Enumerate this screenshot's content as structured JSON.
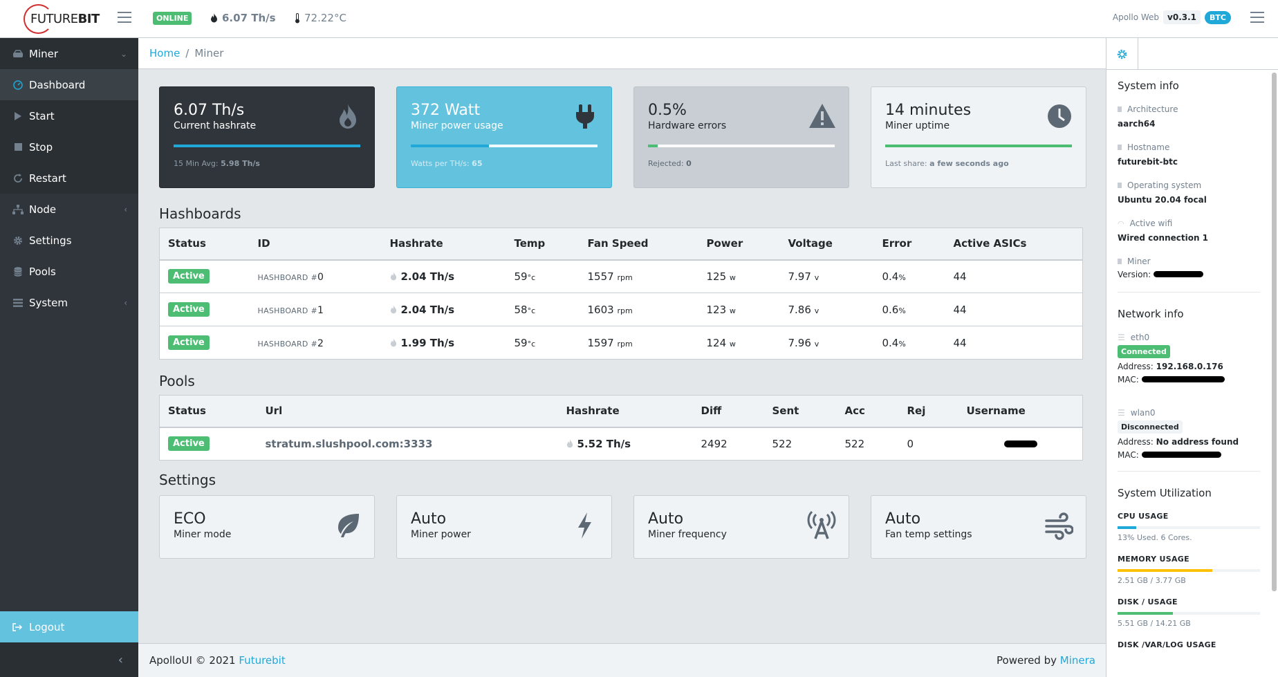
{
  "header": {
    "logo_light": "FUTURE",
    "logo_bold": "BIT",
    "status": "ONLINE",
    "hashrate": "6.07 Th/s",
    "temperature": "72.22°C",
    "app_name": "Apollo Web",
    "version": "v0.3.1",
    "coin": "BTC"
  },
  "sidebar": {
    "items": [
      {
        "label": "Miner",
        "icon": "hdd-icon"
      },
      {
        "label": "Dashboard",
        "icon": "speedometer-icon"
      },
      {
        "label": "Start",
        "icon": "play-icon"
      },
      {
        "label": "Stop",
        "icon": "stop-icon"
      },
      {
        "label": "Restart",
        "icon": "refresh-icon"
      },
      {
        "label": "Node",
        "icon": "network-icon"
      },
      {
        "label": "Settings",
        "icon": "gear-icon"
      },
      {
        "label": "Pools",
        "icon": "database-icon"
      },
      {
        "label": "System",
        "icon": "list-icon"
      }
    ],
    "logout": "Logout"
  },
  "breadcrumb": {
    "home": "Home",
    "sep": "/",
    "current": "Miner"
  },
  "cards": [
    {
      "value": "6.07 Th/s",
      "label": "Current hashrate",
      "foot_label": "15 Min Avg:",
      "foot_value": "5.98 Th/s",
      "progress": 1.0,
      "icon": "fire-icon"
    },
    {
      "value": "372 Watt",
      "label": "Miner power usage",
      "foot_label": "Watts per TH/s:",
      "foot_value": "65",
      "progress": 0.42,
      "icon": "plug-icon"
    },
    {
      "value": "0.5%",
      "label": "Hardware errors",
      "foot_label": "Rejected:",
      "foot_value": "0",
      "progress": 0.05,
      "icon": "warning-icon"
    },
    {
      "value": "14 minutes",
      "label": "Miner uptime",
      "foot_label": "Last share:",
      "foot_value": "a few seconds ago",
      "progress": 1.0,
      "icon": "clock-icon"
    }
  ],
  "colors": {
    "primary": "#20a8d8",
    "success": "#4dbd74",
    "warning": "#ffc107",
    "info": "#63c2de",
    "dark": "#2f353a"
  },
  "hashboards": {
    "title": "Hashboards",
    "columns": [
      "Status",
      "ID",
      "Hashrate",
      "Temp",
      "Fan Speed",
      "Power",
      "Voltage",
      "Error",
      "Active ASICs"
    ],
    "id_prefix": "HASHBOARD #",
    "units": {
      "temp": "°c",
      "fan": "rpm",
      "power": "w",
      "voltage": "v",
      "error": "%"
    },
    "rows": [
      {
        "status": "Active",
        "id": "0",
        "hashrate": "2.04 Th/s",
        "temp": "59",
        "fan": "1557",
        "power": "125",
        "voltage": "7.97",
        "error": "0.4",
        "asics": "44"
      },
      {
        "status": "Active",
        "id": "1",
        "hashrate": "2.04 Th/s",
        "temp": "58",
        "fan": "1603",
        "power": "123",
        "voltage": "7.86",
        "error": "0.6",
        "asics": "44"
      },
      {
        "status": "Active",
        "id": "2",
        "hashrate": "1.99 Th/s",
        "temp": "59",
        "fan": "1597",
        "power": "124",
        "voltage": "7.96",
        "error": "0.4",
        "asics": "44"
      }
    ]
  },
  "pools": {
    "title": "Pools",
    "columns": [
      "Status",
      "Url",
      "Hashrate",
      "Diff",
      "Sent",
      "Acc",
      "Rej",
      "Username"
    ],
    "rows": [
      {
        "status": "Active",
        "url": "stratum.slushpool.com:3333",
        "hashrate": "5.52 Th/s",
        "diff": "2492",
        "sent": "522",
        "acc": "522",
        "rej": "0"
      }
    ]
  },
  "settings": {
    "title": "Settings",
    "cards": [
      {
        "value": "ECO",
        "label": "Miner mode",
        "icon": "leaf-icon"
      },
      {
        "value": "Auto",
        "label": "Miner power",
        "icon": "bolt-icon"
      },
      {
        "value": "Auto",
        "label": "Miner frequency",
        "icon": "antenna-icon"
      },
      {
        "value": "Auto",
        "label": "Fan temp settings",
        "icon": "wind-icon"
      }
    ]
  },
  "footer": {
    "left": "ApolloUI © 2021",
    "left_link": "Futurebit",
    "right": "Powered by",
    "right_link": "Minera"
  },
  "aside": {
    "system_title": "System info",
    "architecture_label": "Architecture",
    "architecture": "aarch64",
    "hostname_label": "Hostname",
    "hostname": "futurebit-btc",
    "os_label": "Operating system",
    "os": "Ubuntu 20.04 focal",
    "wifi_label": "Active wifi",
    "wifi": "Wired connection 1",
    "miner_label": "Miner",
    "version_label": "Version:",
    "network_title": "Network info",
    "eth_name": "eth0",
    "eth_status": "Connected",
    "address_label": "Address:",
    "eth_address": "192.168.0.176",
    "mac_label": "MAC:",
    "wlan_name": "wlan0",
    "wlan_status": "Disconnected",
    "wlan_address": "No address found",
    "util_title": "System Utilization",
    "cpu_label": "CPU USAGE",
    "cpu_text": "13% Used. 6 Cores.",
    "cpu_pct": 0.13,
    "mem_label": "MEMORY USAGE",
    "mem_text": "2.51 GB / 3.77 GB",
    "mem_pct": 0.665,
    "disk_label": "DISK / USAGE",
    "disk_text": "5.51 GB / 14.21 GB",
    "disk_pct": 0.39,
    "disk2_label": "DISK /VAR/LOG USAGE"
  }
}
